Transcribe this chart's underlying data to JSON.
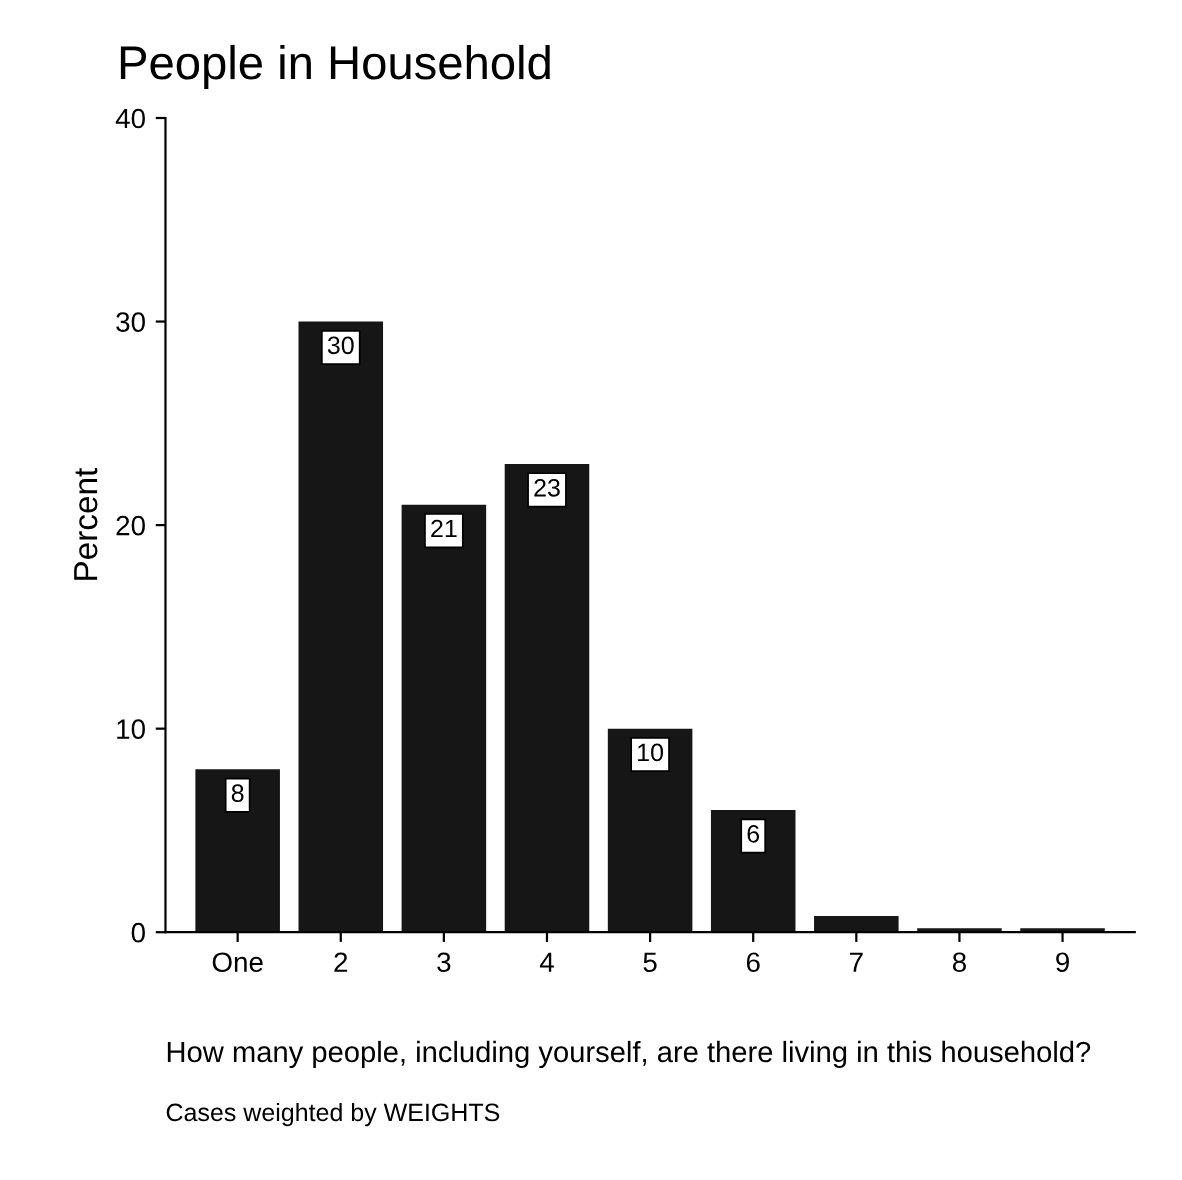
{
  "chart_data": {
    "type": "bar",
    "title": "People in Household",
    "xlabel": "How many people, including yourself, are there living in this household?",
    "ylabel": "Percent",
    "categories": [
      "One",
      "2",
      "3",
      "4",
      "5",
      "6",
      "7",
      "8",
      "9"
    ],
    "values": [
      8,
      30,
      21,
      23,
      10,
      6,
      0.8,
      0.2,
      0.2
    ],
    "value_labels": [
      "8",
      "30",
      "21",
      "23",
      "10",
      "6",
      null,
      null,
      null
    ],
    "color": "#161616",
    "ylim": [
      0,
      40
    ],
    "yticks": [
      0,
      10,
      20,
      30,
      40
    ],
    "grid": false,
    "annotations": [
      "Cases weighted by WEIGHTS"
    ]
  }
}
